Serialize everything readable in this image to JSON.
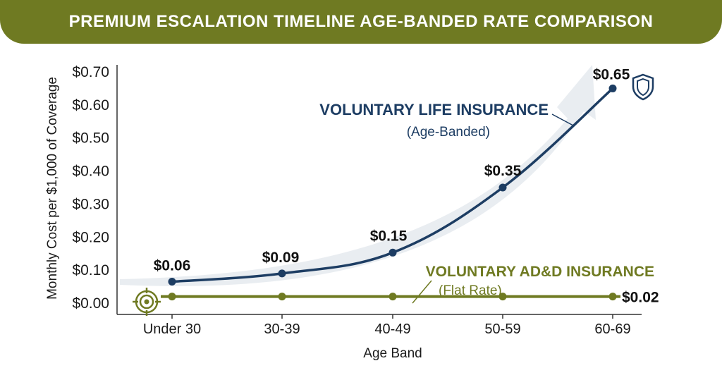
{
  "title": "PREMIUM ESCALATION TIMELINE AGE-BANDED RATE COMPARISON",
  "colors": {
    "banner": "#6f7a22",
    "life": "#1d3d63",
    "add": "#6f7a22",
    "arrow": "#e9edf1"
  },
  "chart_data": {
    "type": "line",
    "title": "PREMIUM ESCALATION TIMELINE AGE-BANDED RATE COMPARISON",
    "xlabel": "Age Band",
    "ylabel": "Monthly Cost per $1,000 of Coverage",
    "categories": [
      "Under 30",
      "30-39",
      "40-49",
      "50-59",
      "60-69"
    ],
    "ylim": [
      0,
      0.7
    ],
    "yticks": [
      "$0.00",
      "$0.10",
      "$0.20",
      "$0.30",
      "$0.40",
      "$0.50",
      "$0.60",
      "$0.70"
    ],
    "grid": false,
    "series": [
      {
        "name": "VOLUNTARY LIFE INSURANCE",
        "subtitle": "(Age-Banded)",
        "values": [
          0.065,
          0.09,
          0.153,
          0.35,
          0.65
        ],
        "labels": [
          "$0.06",
          "$0.09",
          "$0.15",
          "$0.35",
          "$0.65"
        ],
        "color": "#1d3d63",
        "icon": "shield-icon"
      },
      {
        "name": "VOLUNTARY AD&D INSURANCE",
        "subtitle": "(Flat Rate)",
        "values": [
          0.02,
          0.02,
          0.02,
          0.02,
          0.02
        ],
        "labels": [
          "$0.02"
        ],
        "color": "#6f7a22",
        "icon": "target-icon"
      }
    ]
  }
}
